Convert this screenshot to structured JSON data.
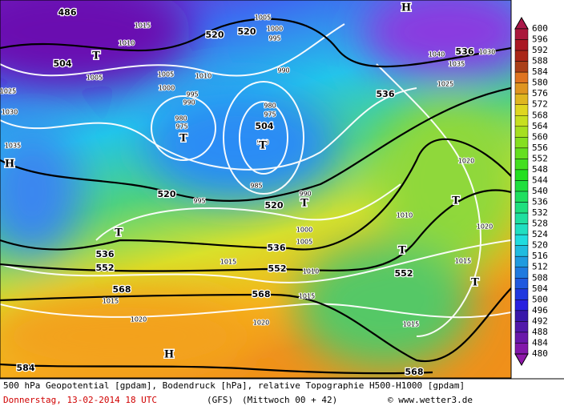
{
  "map": {
    "height_labels": [
      "486",
      "504",
      "520",
      "520",
      "536",
      "536",
      "504",
      "520",
      "520",
      "536",
      "552",
      "536",
      "552",
      "568",
      "568",
      "552",
      "568",
      "584"
    ],
    "pressure_labels": [
      "1005",
      "1000",
      "995",
      "990",
      "980",
      "975",
      "960",
      "995",
      "990",
      "980",
      "975",
      "1015",
      "1010",
      "1005",
      "1010",
      "1005",
      "1000",
      "995",
      "985",
      "990",
      "1010",
      "1020",
      "1025",
      "1030",
      "1035",
      "1040",
      "1015",
      "1020",
      "1020",
      "1015",
      "1010",
      "1015",
      "1015",
      "1015",
      "1020",
      "1005",
      "1000",
      "1030",
      "1035",
      "1025"
    ],
    "symbols": [
      "H",
      "H",
      "H",
      "T",
      "T",
      "T",
      "T",
      "T",
      "T",
      "T",
      "T"
    ]
  },
  "legend": {
    "labels": [
      "600",
      "596",
      "592",
      "588",
      "584",
      "580",
      "576",
      "572",
      "568",
      "564",
      "560",
      "556",
      "552",
      "548",
      "544",
      "540",
      "536",
      "532",
      "528",
      "524",
      "520",
      "516",
      "512",
      "508",
      "504",
      "500",
      "496",
      "492",
      "488",
      "484",
      "480"
    ]
  },
  "footer": {
    "description": "500 hPa Geopotential [gpdam], Bodendruck [hPa], relative Topographie H500-H1000 [gpdam]",
    "date": "Donnerstag, 13-02-2014  18 UTC",
    "model": "(GFS)",
    "run": "(Mittwoch 00 + 42)",
    "copyright": "© www.wetter3.de"
  }
}
